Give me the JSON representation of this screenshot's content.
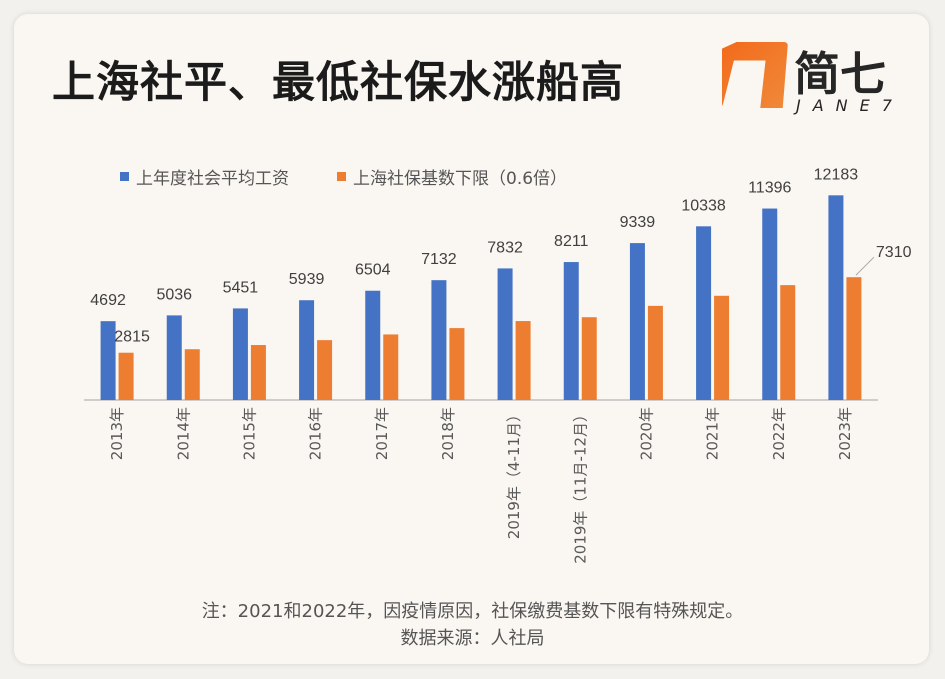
{
  "header": {
    "title": "上海社平、最低社保水涨船高",
    "logo_text": "简七",
    "logo_sub": "JANE7"
  },
  "colors": {
    "series1": "#4472c4",
    "series2": "#ed7d31",
    "axis": "#bfbfbf",
    "label": "#404040"
  },
  "chart_data": {
    "type": "bar",
    "title": "上海社平、最低社保水涨船高",
    "categories": [
      "2013年",
      "2014年",
      "2015年",
      "2016年",
      "2017年",
      "2018年",
      "2019年（4-11月）",
      "2019年（11月-12月）",
      "2020年",
      "2021年",
      "2022年",
      "2023年"
    ],
    "series": [
      {
        "name": "上年度社会平均工资",
        "values": [
          4692,
          5036,
          5451,
          5939,
          6504,
          7132,
          7832,
          8211,
          9339,
          10338,
          11396,
          12183
        ],
        "labels": [
          "4692",
          "5036",
          "5451",
          "5939",
          "6504",
          "7132",
          "7832",
          "8211",
          "9339",
          "10338",
          "11396",
          "12183"
        ]
      },
      {
        "name": "上海社保基数下限（0.6倍）",
        "values": [
          2815,
          3022,
          3271,
          3563,
          3902,
          4279,
          4699,
          4927,
          5603,
          6203,
          6838,
          7310
        ],
        "labels": [
          "2815",
          "",
          "",
          "",
          "",
          "",
          "",
          "",
          "",
          "",
          "",
          "7310"
        ]
      }
    ],
    "ylim": [
      0,
      12500
    ],
    "xlabel": "",
    "ylabel": "",
    "legend": "top-left",
    "grid": false
  },
  "footer": {
    "note": "注：2021和2022年，因疫情原因，社保缴费基数下限有特殊规定。",
    "source": "数据来源：人社局"
  }
}
